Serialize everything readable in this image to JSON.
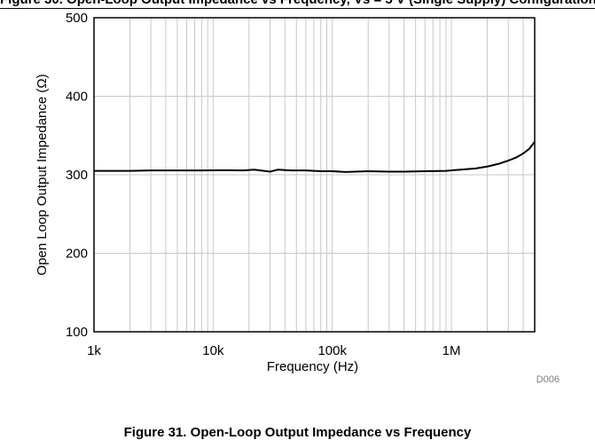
{
  "top_caption": "Figure 30. Open-Loop Output Impedance vs Frequency, Vs = 5 V (Single Supply) Configuration",
  "bottom_caption": "Figure 31. Open-Loop Output Impedance vs Frequency",
  "chart_data": {
    "type": "line",
    "title": "",
    "xlabel": "Frequency (Hz)",
    "ylabel": "Open Loop Output Impedance (Ω)",
    "xscale": "log",
    "xlim": [
      1000,
      5000000
    ],
    "ylim": [
      100,
      500
    ],
    "x_ticks": [
      {
        "value": 1000,
        "label": "1k"
      },
      {
        "value": 10000,
        "label": "10k"
      },
      {
        "value": 100000,
        "label": "100k"
      },
      {
        "value": 1000000,
        "label": "1M"
      }
    ],
    "y_ticks": [
      {
        "value": 100,
        "label": "100"
      },
      {
        "value": 200,
        "label": "200"
      },
      {
        "value": 300,
        "label": "300"
      },
      {
        "value": 400,
        "label": "400"
      },
      {
        "value": 500,
        "label": "500"
      }
    ],
    "grid": true,
    "figure_code": "D006",
    "line_color": "#000000",
    "grid_color": "#c8c8c8",
    "series": [
      {
        "x": [
          1000,
          2000,
          3000,
          5000,
          8000,
          12000,
          18000,
          22000,
          25000,
          30000,
          35000,
          45000,
          60000,
          80000,
          100000,
          130000,
          200000,
          300000,
          400000,
          600000,
          900000,
          1200000,
          1600000,
          2000000,
          2500000,
          3000000,
          3500000,
          4000000,
          4500000,
          5000000
        ],
        "y": [
          305,
          305,
          305.5,
          305.5,
          305.5,
          305.8,
          305.5,
          306.5,
          305.5,
          304,
          306.5,
          305.5,
          305.5,
          304.5,
          304.5,
          303.5,
          304.5,
          304,
          304,
          304.5,
          305,
          306.5,
          308,
          310.5,
          314,
          318,
          322,
          327,
          333,
          342
        ]
      }
    ]
  }
}
